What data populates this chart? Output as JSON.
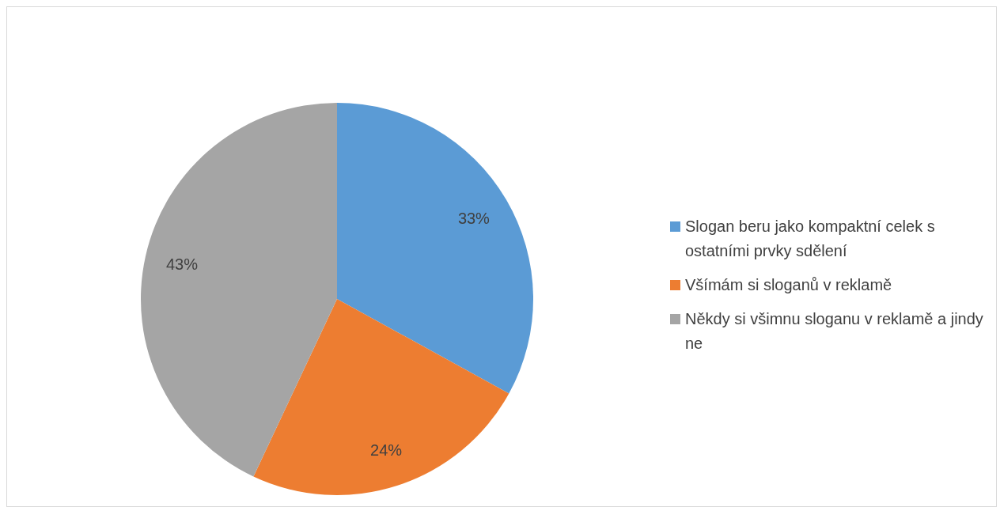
{
  "chart_data": {
    "type": "pie",
    "categories": [
      "Slogan beru jako kompaktní celek s ostatními prvky sdělení",
      "Všímám si sloganů v reklamě",
      "Někdy si všimnu sloganu v reklamě a jindy ne"
    ],
    "values": [
      33,
      24,
      43
    ],
    "colors": [
      "#5b9bd5",
      "#ed7d31",
      "#a5a5a5"
    ],
    "value_labels": [
      "33%",
      "24%",
      "43%"
    ],
    "legend": "right"
  }
}
